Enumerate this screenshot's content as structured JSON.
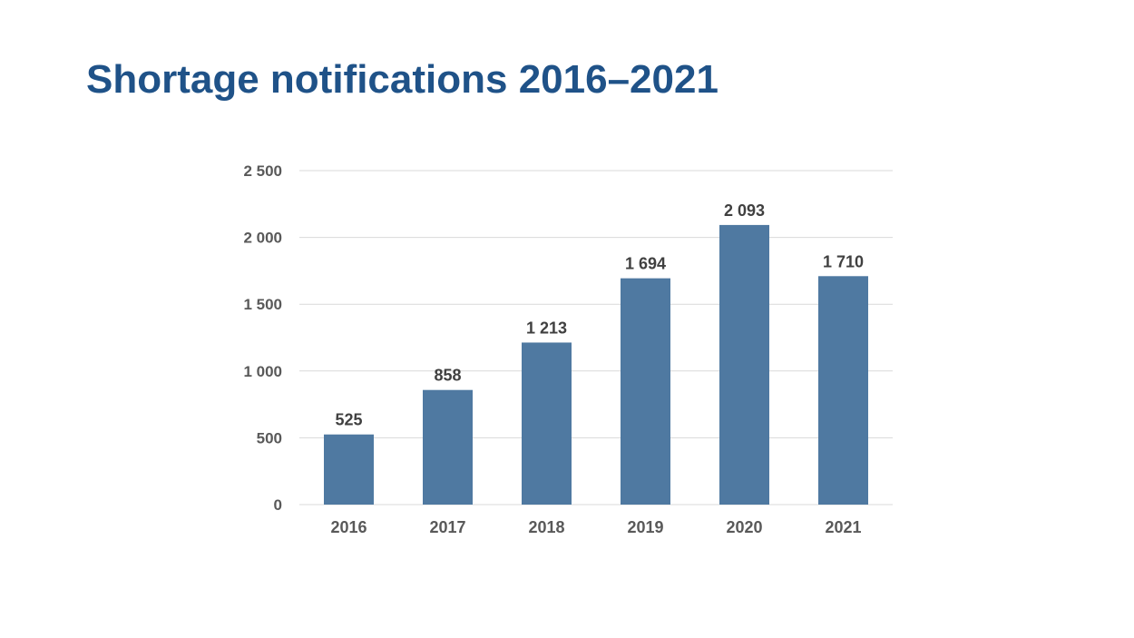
{
  "page_title": "Shortage notifications 2016–2021",
  "colors": {
    "title": "#1f5288",
    "bar": "#4f79a1",
    "gridline": "#d9d9d9",
    "tick_label": "#595959",
    "data_label": "#404040"
  },
  "chart_data": {
    "type": "bar",
    "categories": [
      "2016",
      "2017",
      "2018",
      "2019",
      "2020",
      "2021"
    ],
    "values": [
      525,
      858,
      1213,
      1694,
      2093,
      1710
    ],
    "data_labels": [
      "525",
      "858",
      "1 213",
      "1 694",
      "2 093",
      "1 710"
    ],
    "y_ticks": [
      0,
      500,
      1000,
      1500,
      2000,
      2500
    ],
    "y_tick_labels": [
      "0",
      "500",
      "1 000",
      "1 500",
      "2 000",
      "2 500"
    ],
    "ylim": [
      0,
      2500
    ],
    "grid": true,
    "legend": "none"
  }
}
